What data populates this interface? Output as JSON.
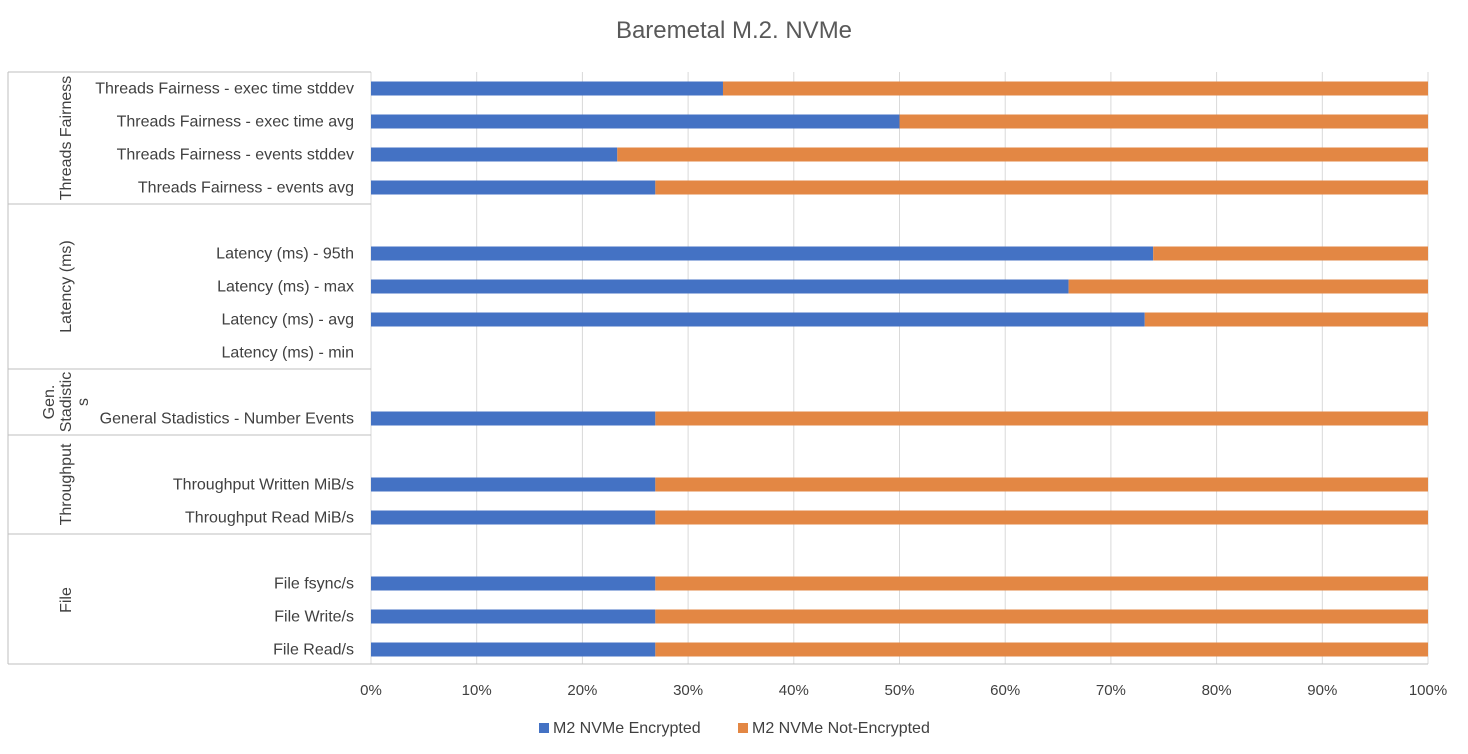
{
  "chart_data": {
    "type": "bar",
    "orientation": "horizontal",
    "stacked": "100%",
    "title": "Baremetal M.2. NVMe",
    "xlim": [
      0,
      100
    ],
    "x_ticks": [
      "0%",
      "10%",
      "20%",
      "30%",
      "40%",
      "50%",
      "60%",
      "70%",
      "80%",
      "90%",
      "100%"
    ],
    "grid": true,
    "legend_position": "bottom",
    "colors": {
      "encrypted": "#4472c4",
      "not_encrypted": "#e38744"
    },
    "series": [
      {
        "name": "M2 NVMe Encrypted"
      },
      {
        "name": "M2 NVMe Not-Encrypted"
      }
    ],
    "groups": [
      {
        "name": "Threads Fairness",
        "label_lines": [
          "Threads Fairness"
        ],
        "slots": 4,
        "items": [
          {
            "label": "Threads Fairness - exec time stddev",
            "encrypted": 33.3,
            "not_encrypted": 66.7
          },
          {
            "label": "Threads Fairness - exec time avg",
            "encrypted": 50.0,
            "not_encrypted": 50.0
          },
          {
            "label": "Threads Fairness - events stddev",
            "encrypted": 23.3,
            "not_encrypted": 76.7
          },
          {
            "label": "Threads Fairness - events avg",
            "encrypted": 26.9,
            "not_encrypted": 73.1
          }
        ]
      },
      {
        "name": "Latency (ms)",
        "label_lines": [
          "Latency (ms)"
        ],
        "slots": 5,
        "items": [
          {
            "label": "Latency (ms) - 95th",
            "encrypted": 74.0,
            "not_encrypted": 26.0
          },
          {
            "label": "Latency (ms) - max",
            "encrypted": 66.0,
            "not_encrypted": 34.0
          },
          {
            "label": "Latency (ms) - avg",
            "encrypted": 73.2,
            "not_encrypted": 26.8
          },
          {
            "label": "Latency (ms) - min",
            "encrypted": null,
            "not_encrypted": null
          }
        ]
      },
      {
        "name": "Gen. Stadistics",
        "label_lines": [
          "Gen.",
          "Stadistic",
          "s"
        ],
        "slots": 2,
        "items": [
          {
            "label": "General Stadistics - Number Events",
            "encrypted": 26.9,
            "not_encrypted": 73.1
          }
        ]
      },
      {
        "name": "Throughput",
        "label_lines": [
          "Throughput"
        ],
        "slots": 3,
        "items": [
          {
            "label": "Throughput Written MiB/s",
            "encrypted": 26.9,
            "not_encrypted": 73.1
          },
          {
            "label": "Throughput Read MiB/s",
            "encrypted": 26.9,
            "not_encrypted": 73.1
          }
        ]
      },
      {
        "name": "File",
        "label_lines": [
          "File"
        ],
        "slots": 4,
        "items": [
          {
            "label": "File fsync/s",
            "encrypted": 26.9,
            "not_encrypted": 73.1
          },
          {
            "label": "File Write/s",
            "encrypted": 26.9,
            "not_encrypted": 73.1
          },
          {
            "label": "File Read/s",
            "encrypted": 26.9,
            "not_encrypted": 73.1
          }
        ]
      }
    ]
  }
}
